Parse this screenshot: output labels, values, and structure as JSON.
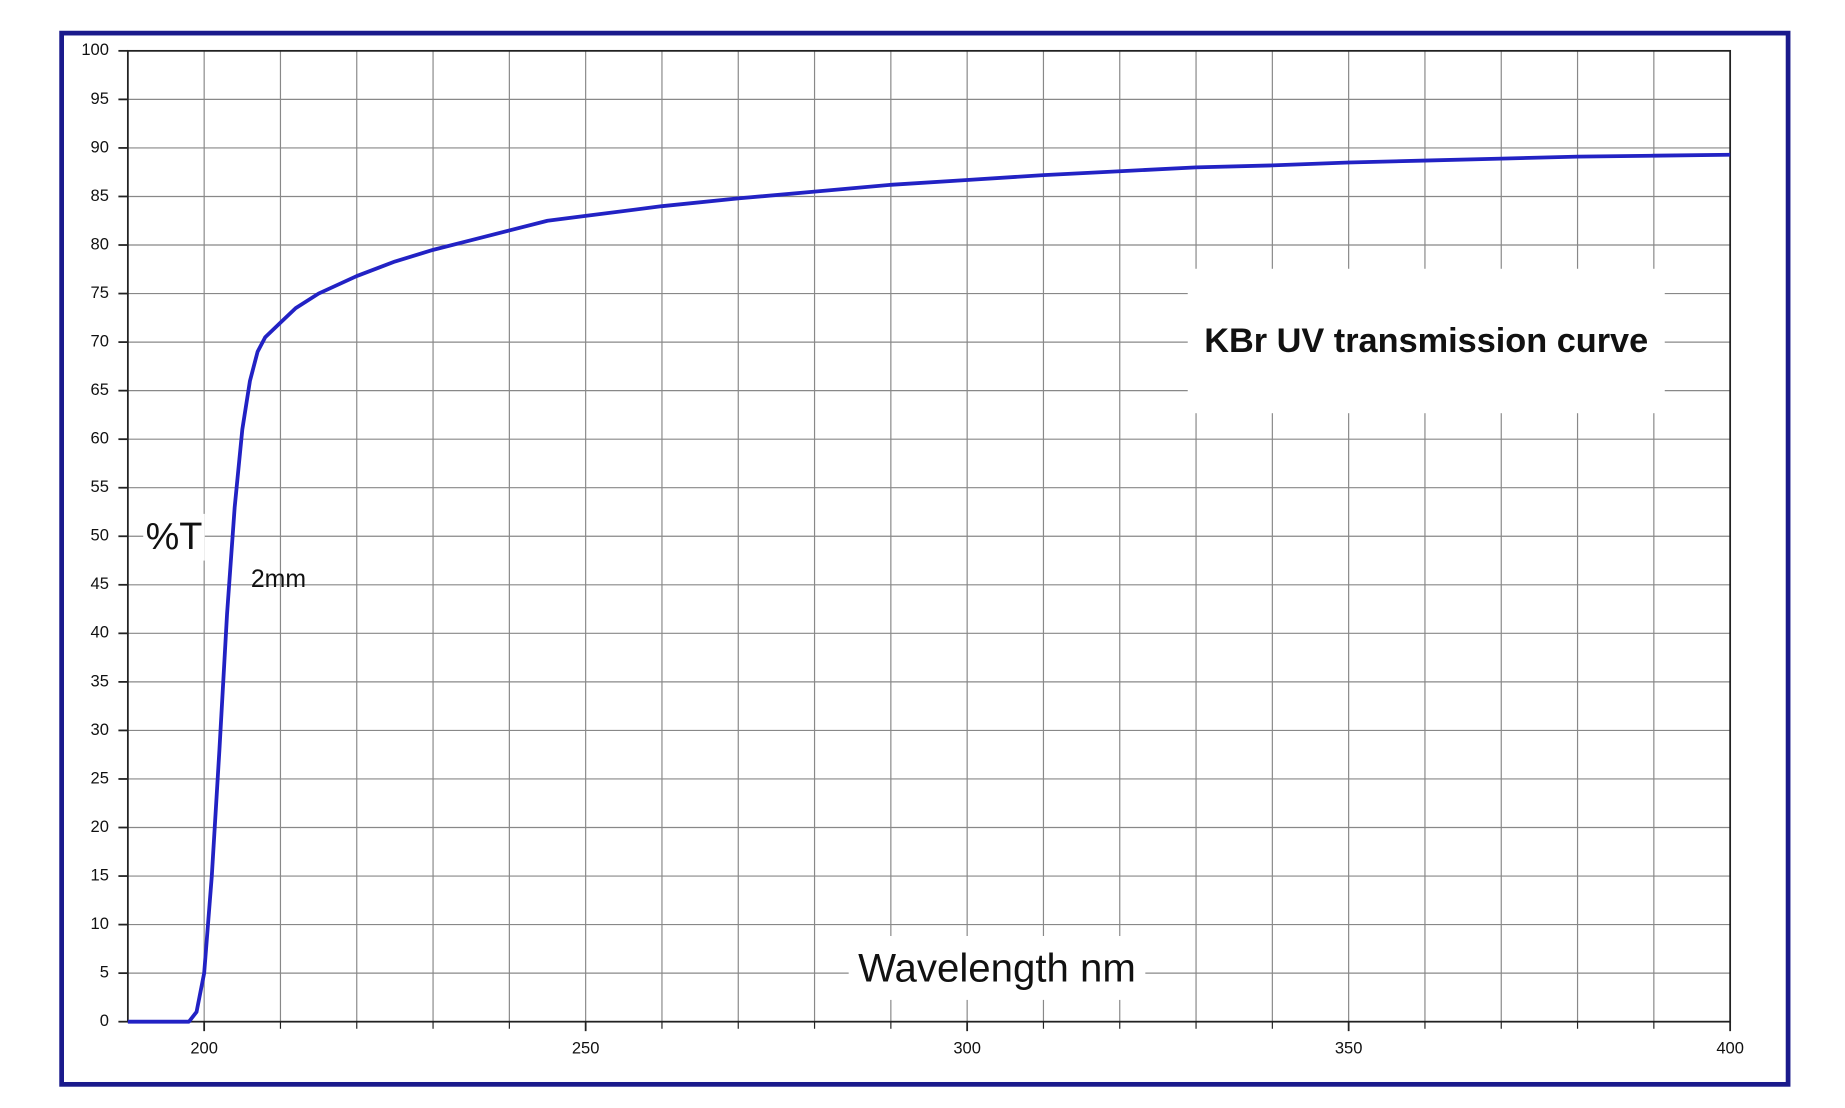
{
  "chart_data": {
    "type": "line",
    "title": "KBr UV transmission curve",
    "x_label": "Wavelength nm",
    "y_label": "%T",
    "x": [
      190,
      195,
      198,
      199,
      200,
      201,
      202,
      203,
      204,
      205,
      206,
      207,
      208,
      210,
      212,
      215,
      220,
      225,
      230,
      235,
      240,
      245,
      250,
      260,
      270,
      280,
      290,
      300,
      310,
      320,
      330,
      340,
      350,
      360,
      370,
      380,
      390,
      400
    ],
    "series": [
      {
        "name": "2mm",
        "color": "#2222c4",
        "values": [
          0,
          0,
          0,
          1,
          5,
          15,
          28,
          42,
          53,
          61,
          66,
          69,
          70.5,
          72,
          73.5,
          75,
          76.8,
          78.3,
          79.5,
          80.5,
          81.5,
          82.5,
          83,
          84,
          84.8,
          85.5,
          86.2,
          86.7,
          87.2,
          87.6,
          88,
          88.2,
          88.5,
          88.7,
          88.9,
          89.1,
          89.2,
          89.3
        ]
      }
    ],
    "xlim": [
      190,
      400
    ],
    "ylim": [
      0,
      100
    ],
    "xticks": [
      200,
      250,
      300,
      350,
      400
    ],
    "x_minor_gridlines": [
      210,
      220,
      230,
      240,
      260,
      270,
      280,
      290,
      310,
      320,
      330,
      340,
      360,
      370,
      380,
      390
    ],
    "yticks": [
      0,
      5,
      10,
      15,
      20,
      25,
      30,
      35,
      40,
      45,
      50,
      55,
      60,
      65,
      70,
      75,
      80,
      85,
      90,
      95,
      100
    ],
    "grid": true,
    "frame_color": "#1a1a8c"
  }
}
